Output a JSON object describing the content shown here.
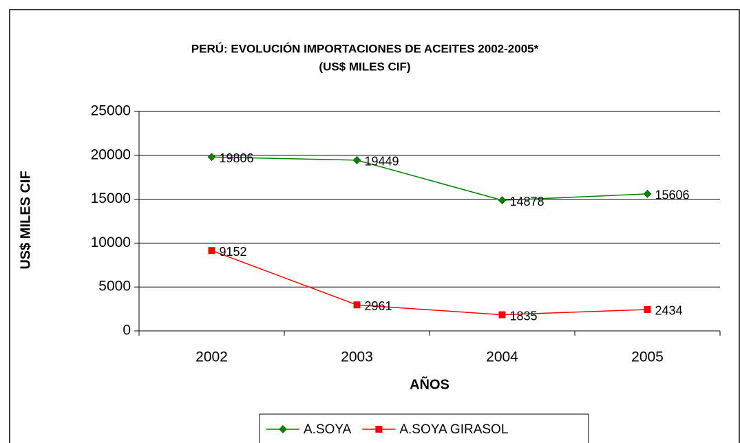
{
  "chart_data": {
    "type": "line",
    "title": "PERÚ: EVOLUCIÓN IMPORTACIONES DE ACEITES 2002-2005*",
    "subtitle": "(US$ MILES CIF)",
    "x_label": "AÑOS",
    "y_label": "US$ MILES CIF",
    "categories": [
      "2002",
      "2003",
      "2004",
      "2005"
    ],
    "series": [
      {
        "name": "A.SOYA",
        "color": "#008000",
        "marker": "diamond",
        "values": [
          19806,
          19449,
          14878,
          15606
        ]
      },
      {
        "name": "A.SOYA GIRASOL",
        "color": "#ff0000",
        "marker": "square",
        "values": [
          9152,
          2961,
          1835,
          2434
        ]
      }
    ],
    "ylim": [
      0,
      25000
    ],
    "yticks": [
      0,
      5000,
      10000,
      15000,
      20000,
      25000
    ],
    "grid": true,
    "legend": "bottom"
  }
}
